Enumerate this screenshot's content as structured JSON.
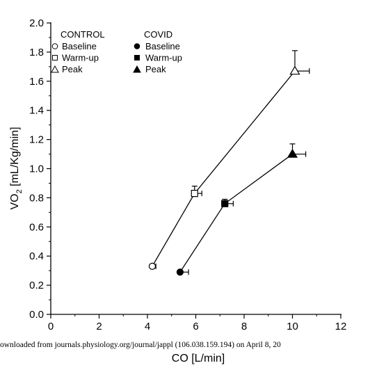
{
  "chart_data": {
    "type": "scatter",
    "xlabel": "CO  [L/min]",
    "ylabel": "VO",
    "ylabel_sub": "2",
    "ylabel_unit": "  [mL/Kg/min]",
    "xlim": [
      0,
      12
    ],
    "ylim": [
      0,
      2.0
    ],
    "x_ticks": [
      0,
      2,
      4,
      6,
      8,
      10,
      12
    ],
    "y_ticks": [
      0.0,
      0.2,
      0.4,
      0.6,
      0.8,
      1.0,
      1.2,
      1.4,
      1.6,
      1.8,
      2.0
    ],
    "x_tick_labels": [
      "0",
      "2",
      "4",
      "6",
      "8",
      "10",
      "12"
    ],
    "y_tick_labels": [
      "0.0",
      "0.2",
      "0.4",
      "0.6",
      "0.8",
      "1.0",
      "1.2",
      "1.4",
      "1.6",
      "1.8",
      "2.0"
    ],
    "grid": false,
    "legend": {
      "placement": "top-left",
      "groups": [
        {
          "title": "CONTROL",
          "entries": [
            {
              "label": "Baseline",
              "marker": "circle-open"
            },
            {
              "label": "Warm-up",
              "marker": "square-open"
            },
            {
              "label": "Peak",
              "marker": "triangle-open"
            }
          ]
        },
        {
          "title": "COVID",
          "entries": [
            {
              "label": "Baseline",
              "marker": "circle-filled"
            },
            {
              "label": "Warm-up",
              "marker": "square-filled"
            },
            {
              "label": "Peak",
              "marker": "triangle-filled"
            }
          ]
        }
      ]
    },
    "series": [
      {
        "name": "CONTROL",
        "filled": false,
        "points": [
          {
            "label": "Baseline",
            "x": 4.2,
            "y": 0.33,
            "x_err": 0.15,
            "y_err": 0.01,
            "marker": "circle"
          },
          {
            "label": "Warm-up",
            "x": 5.95,
            "y": 0.83,
            "x_err": 0.3,
            "y_err": 0.05,
            "marker": "square"
          },
          {
            "label": "Peak",
            "x": 10.1,
            "y": 1.67,
            "x_err": 0.6,
            "y_err": 0.14,
            "marker": "triangle"
          }
        ]
      },
      {
        "name": "COVID",
        "filled": true,
        "points": [
          {
            "label": "Baseline",
            "x": 5.35,
            "y": 0.29,
            "x_err": 0.35,
            "y_err": 0.01,
            "marker": "circle"
          },
          {
            "label": "Warm-up",
            "x": 7.2,
            "y": 0.76,
            "x_err": 0.35,
            "y_err": 0.03,
            "marker": "square"
          },
          {
            "label": "Peak",
            "x": 10.0,
            "y": 1.1,
            "x_err": 0.55,
            "y_err": 0.07,
            "marker": "triangle"
          }
        ]
      }
    ]
  },
  "footer": {
    "download_note": "ownloaded from journals.physiology.org/journal/jappl (106.038.159.194) on April 8, 20"
  }
}
